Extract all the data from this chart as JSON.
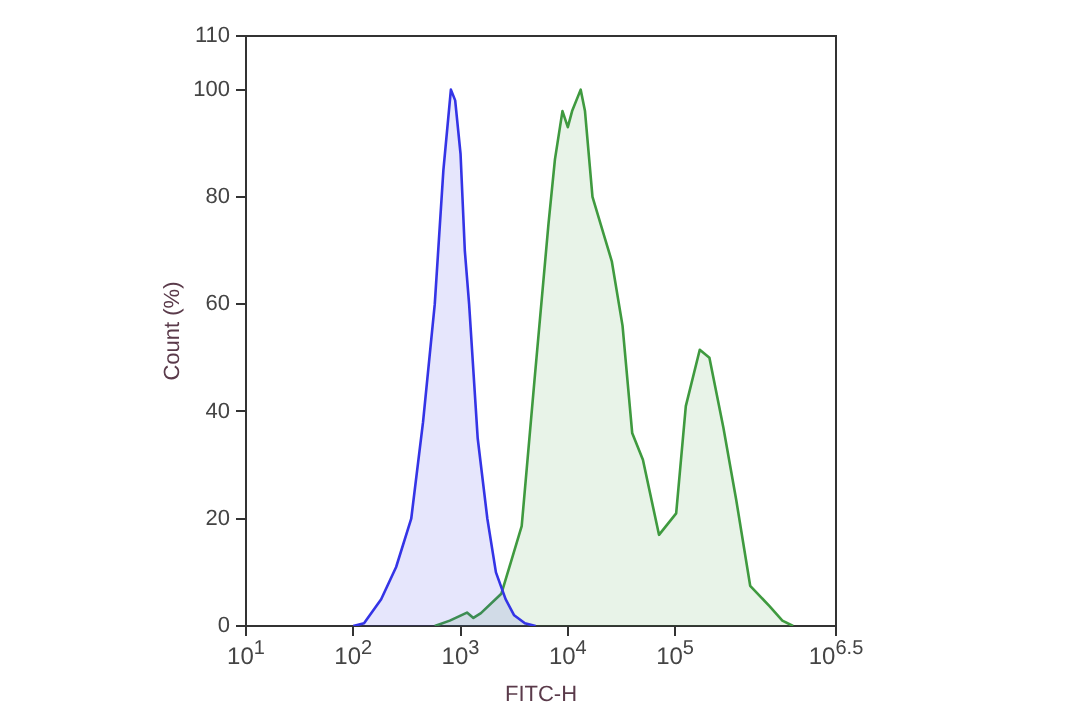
{
  "chart_data": {
    "type": "area",
    "xlabel": "FITC-H",
    "ylabel": "Count (%)",
    "log": "x",
    "grid": false,
    "legend": false,
    "marker": "none",
    "xlim": [
      10,
      3162278
    ],
    "xticks": [
      {
        "value": 10,
        "label": "10$^{1}$"
      },
      {
        "value": 100,
        "label": "10$^{2}$"
      },
      {
        "value": 1000,
        "label": "10$^{3}$"
      },
      {
        "value": 10000,
        "label": "10$^{4}$"
      },
      {
        "value": 100000,
        "label": "10$^{5}$"
      },
      {
        "value": 3162278,
        "label": "10$^{6.5}$"
      }
    ],
    "ylim": [
      0,
      110
    ],
    "yticks": [
      0,
      20,
      40,
      60,
      80,
      100,
      110
    ],
    "series": [
      {
        "color": "#3434e6",
        "x": [
          100,
          126,
          182,
          251,
          347,
          447,
          575,
          692,
          813,
          891,
          1000,
          1096,
          1202,
          1445,
          1778,
          2138,
          2630,
          3162,
          3981,
          5012
        ],
        "values": [
          0,
          0.5,
          5,
          11,
          20,
          38,
          60,
          85,
          100,
          98,
          88,
          70,
          60,
          35,
          20,
          10,
          5,
          2,
          0.5,
          0
        ]
      },
      {
        "color": "#3f9a3f",
        "x": [
          575,
          794,
          1148,
          1318,
          1549,
          2399,
          3715,
          4898,
          6607,
          7586,
          8913,
          10000,
          10965,
          13183,
          14454,
          16982,
          22387,
          25704,
          32359,
          39811,
          50119,
          70795,
          102329,
          125893,
          169824,
          208930,
          281838,
          371535,
          501187,
          758578,
          1000000,
          1258925
        ],
        "values": [
          0,
          1,
          2.5,
          1.5,
          2.4,
          6,
          18.6,
          46,
          75,
          87,
          96,
          93,
          96,
          100,
          96,
          80,
          72,
          68,
          56,
          36,
          31,
          17,
          21,
          41,
          51.5,
          50,
          37,
          23.5,
          7.5,
          3.7,
          1,
          0
        ]
      }
    ]
  }
}
